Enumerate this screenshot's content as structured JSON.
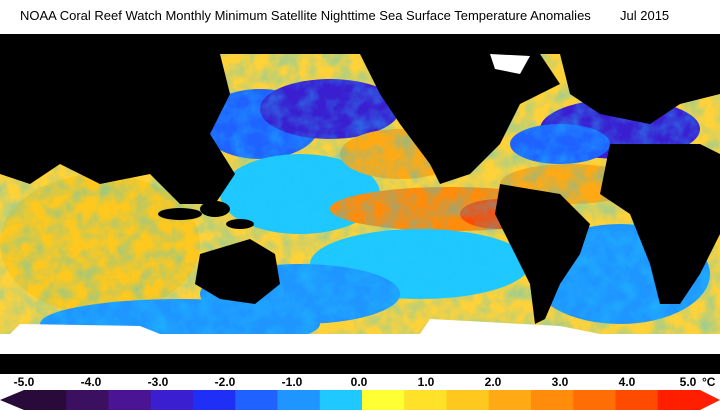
{
  "title": {
    "text": "NOAA Coral Reef Watch Monthly Minimum Satellite Nighttime Sea Surface Temperature Anomalies",
    "date": "Jul 2015"
  },
  "map": {
    "land_color": "#000000",
    "ice_color": "#ffffff",
    "ocean_palette": "sst-anomaly"
  },
  "legend": {
    "unit": "°C",
    "ticks": [
      "-5.0",
      "-4.0",
      "-3.0",
      "-2.0",
      "-1.0",
      "0.0",
      "1.0",
      "2.0",
      "3.0",
      "4.0",
      "5.0"
    ],
    "range": [
      -5.0,
      5.0
    ],
    "colors": [
      "#2a0a3a",
      "#3c1060",
      "#4b1494",
      "#3a1fd0",
      "#1f2ff5",
      "#1f62ff",
      "#1f96ff",
      "#1fc8ff",
      "#ffff33",
      "#ffe12a",
      "#ffc81e",
      "#ffaa14",
      "#ff8c0a",
      "#ff6e05",
      "#ff4b00",
      "#ff1e00"
    ]
  }
}
